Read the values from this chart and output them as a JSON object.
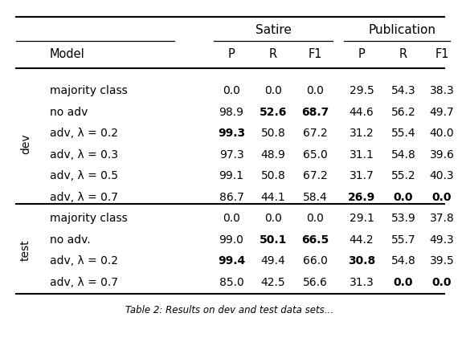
{
  "sections": [
    {
      "section_label": "dev",
      "rows": [
        {
          "model": "majority class",
          "values": [
            "0.0",
            "0.0",
            "0.0",
            "29.5",
            "54.3",
            "38.3"
          ],
          "bold": []
        },
        {
          "model": "no adv",
          "values": [
            "98.9",
            "52.6",
            "68.7",
            "44.6",
            "56.2",
            "49.7"
          ],
          "bold": [
            1,
            2
          ]
        },
        {
          "model": "adv, λ = 0.2",
          "values": [
            "99.3",
            "50.8",
            "67.2",
            "31.2",
            "55.4",
            "40.0"
          ],
          "bold": [
            0
          ]
        },
        {
          "model": "adv, λ = 0.3",
          "values": [
            "97.3",
            "48.9",
            "65.0",
            "31.1",
            "54.8",
            "39.6"
          ],
          "bold": []
        },
        {
          "model": "adv, λ = 0.5",
          "values": [
            "99.1",
            "50.8",
            "67.2",
            "31.7",
            "55.2",
            "40.3"
          ],
          "bold": []
        },
        {
          "model": "adv, λ = 0.7",
          "values": [
            "86.7",
            "44.1",
            "58.4",
            "26.9",
            "0.0",
            "0.0"
          ],
          "bold": [
            3,
            4,
            5
          ]
        }
      ]
    },
    {
      "section_label": "test",
      "rows": [
        {
          "model": "majority class",
          "values": [
            "0.0",
            "0.0",
            "0.0",
            "29.1",
            "53.9",
            "37.8"
          ],
          "bold": []
        },
        {
          "model": "no adv.",
          "values": [
            "99.0",
            "50.1",
            "66.5",
            "44.2",
            "55.7",
            "49.3"
          ],
          "bold": [
            1,
            2
          ]
        },
        {
          "model": "adv, λ = 0.2",
          "values": [
            "99.4",
            "49.4",
            "66.0",
            "30.8",
            "54.8",
            "39.5"
          ],
          "bold": [
            0,
            3
          ]
        },
        {
          "model": "adv, λ = 0.7",
          "values": [
            "85.0",
            "42.5",
            "56.6",
            "31.3",
            "0.0",
            "0.0"
          ],
          "bold": [
            4,
            5
          ]
        }
      ]
    }
  ],
  "group_headers": [
    "Satire",
    "Publication"
  ],
  "col_headers": [
    "P",
    "R",
    "F1",
    "P",
    "R",
    "F1"
  ],
  "bg_color": "#ffffff",
  "text_color": "#000000",
  "font_size": 10.0,
  "header_font_size": 10.5,
  "group_font_size": 11.0
}
